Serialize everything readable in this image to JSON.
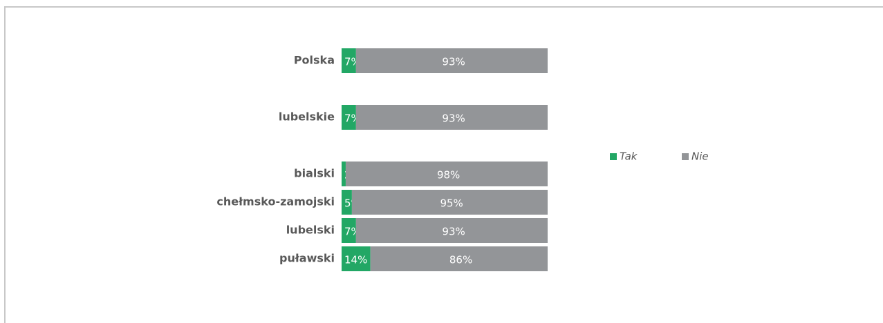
{
  "chart_data": {
    "type": "stacked-bar-horizontal",
    "categories": [
      "Polska",
      "lubelskie",
      "bialski",
      "chełmsko-zamojski",
      "lubelski",
      "puławski"
    ],
    "series": [
      {
        "name": "Tak",
        "color": "#22a765",
        "values": [
          7,
          7,
          2,
          5,
          7,
          14
        ],
        "value_labels": [
          "7%",
          "7%",
          "2%",
          "5%",
          "7%",
          "14%"
        ]
      },
      {
        "name": "Nie",
        "color": "#939598",
        "values": [
          93,
          93,
          98,
          95,
          93,
          86
        ],
        "value_labels": [
          "93%",
          "93%",
          "98%",
          "95%",
          "93%",
          "86%"
        ]
      }
    ],
    "xlim": [
      0,
      100
    ],
    "legend": "right"
  }
}
